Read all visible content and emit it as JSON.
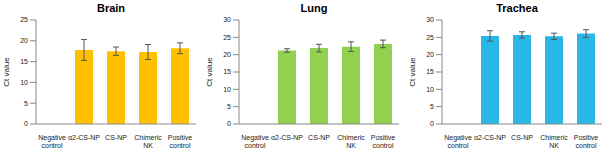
{
  "chart_data": [
    {
      "type": "bar",
      "title": "Brain",
      "ylabel": "Ct value",
      "categories": [
        "Negative control",
        "α2-CS-NP",
        "CS-NP",
        "Chimeric NK",
        "Positive control"
      ],
      "values": [
        null,
        17.8,
        17.5,
        17.3,
        18.2
      ],
      "errors": [
        null,
        2.5,
        1.0,
        1.8,
        1.3
      ],
      "color": "#ffc000",
      "ylim": [
        0,
        25
      ],
      "yticks": [
        0,
        5,
        10,
        15,
        20,
        25
      ],
      "grid": false
    },
    {
      "type": "bar",
      "title": "Lung",
      "ylabel": "Ct value",
      "categories": [
        "Negative control",
        "α2-CS-NP",
        "CS-NP",
        "Chimeric NK",
        "Positive control"
      ],
      "values": [
        null,
        21.2,
        21.9,
        22.3,
        23.1
      ],
      "errors": [
        null,
        0.5,
        1.1,
        1.4,
        1.1
      ],
      "color": "#92d050",
      "ylim": [
        0,
        30
      ],
      "yticks": [
        0,
        5,
        10,
        15,
        20,
        25,
        30
      ],
      "grid": false
    },
    {
      "type": "bar",
      "title": "Trachea",
      "ylabel": "Ct value",
      "categories": [
        "Negative control",
        "α2-CS-NP",
        "CS-NP",
        "Chimeric NK",
        "Positive control"
      ],
      "values": [
        null,
        25.4,
        25.7,
        25.3,
        26.1
      ],
      "errors": [
        null,
        1.5,
        0.9,
        0.9,
        1.1
      ],
      "color": "#29b6e8",
      "ylim": [
        0,
        30
      ],
      "yticks": [
        0,
        5,
        10,
        15,
        20,
        25,
        30
      ],
      "grid": false
    }
  ]
}
